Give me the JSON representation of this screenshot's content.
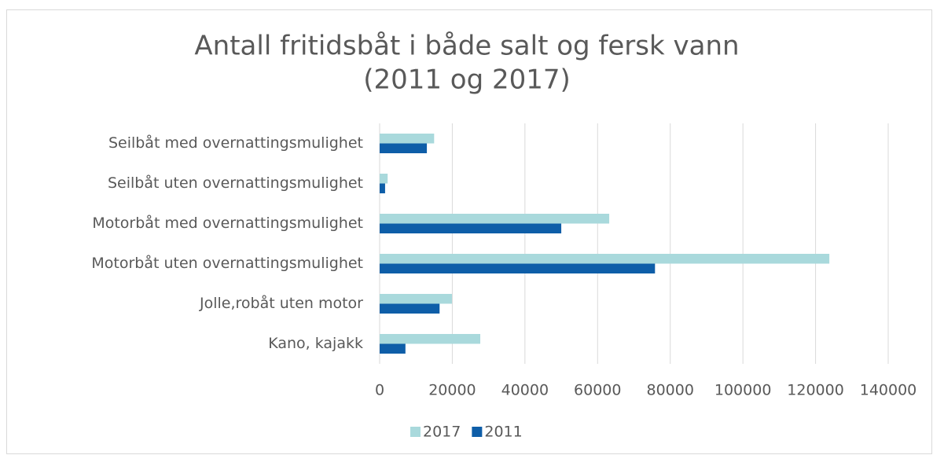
{
  "chart_data": {
    "type": "barh",
    "title": [
      "Antall fritidsbåt i både salt og fersk vann",
      "(2011 og 2017)"
    ],
    "categories": [
      "Seilbåt med overnattingsmulighet",
      "Seilbåt uten overnattingsmulighet",
      "Motorbåt med overnattingsmulighet",
      "Motorbåt uten overnattingsmulighet",
      "Jolle,robåt uten motor",
      "Kano, kajakk"
    ],
    "series": [
      {
        "name": "2017",
        "color": "#a9d9dc",
        "values": [
          15000,
          2200,
          63200,
          123800,
          19900,
          27700
        ]
      },
      {
        "name": "2011",
        "color": "#0e5ea8",
        "values": [
          13000,
          1500,
          50000,
          75800,
          16500,
          7100
        ]
      }
    ],
    "xlim": [
      0,
      140000
    ],
    "xticks": [
      0,
      20000,
      40000,
      60000,
      80000,
      100000,
      120000,
      140000
    ],
    "grid": true,
    "legend": "bottom"
  }
}
